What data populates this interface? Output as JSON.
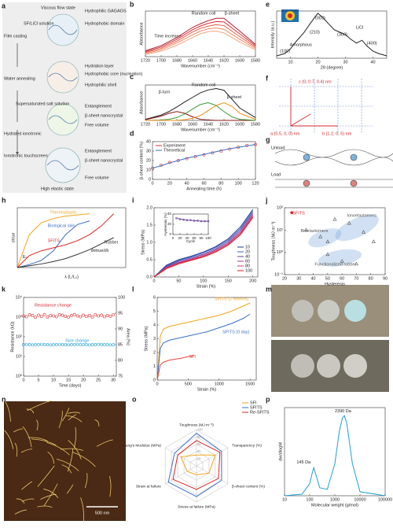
{
  "chart_data": [
    {
      "type": "line",
      "xlabel": "Wavenumber (cm⁻¹)",
      "ylabel": "Absorbance",
      "annotations": [
        "Time increase",
        "Random coil",
        "β-sheet"
      ],
      "x": [
        1720,
        1700,
        1680,
        1660,
        1650,
        1640,
        1630,
        1620,
        1600,
        1580
      ],
      "xlim": [
        1720,
        1580
      ],
      "xticks": [
        1720,
        1700,
        1680,
        1660,
        1640,
        1620,
        1600,
        1580
      ],
      "ylim": [
        0,
        1
      ],
      "series": [
        {
          "color": "#f4a582",
          "values": [
            0.05,
            0.12,
            0.25,
            0.42,
            0.5,
            0.55,
            0.56,
            0.52,
            0.32,
            0.15
          ]
        },
        {
          "color": "#ef8a62",
          "values": [
            0.07,
            0.15,
            0.3,
            0.48,
            0.56,
            0.61,
            0.63,
            0.6,
            0.38,
            0.18
          ]
        },
        {
          "color": "#e35d46",
          "values": [
            0.09,
            0.18,
            0.34,
            0.54,
            0.62,
            0.67,
            0.7,
            0.68,
            0.44,
            0.21
          ]
        },
        {
          "color": "#d6303a",
          "values": [
            0.11,
            0.21,
            0.38,
            0.59,
            0.67,
            0.73,
            0.77,
            0.76,
            0.5,
            0.24
          ]
        },
        {
          "color": "#b2182b",
          "values": [
            0.13,
            0.24,
            0.42,
            0.64,
            0.72,
            0.79,
            0.84,
            0.84,
            0.56,
            0.27
          ]
        }
      ]
    },
    {
      "type": "line",
      "xlabel": "Wavenumber (cm⁻¹)",
      "ylabel": "Absorbance",
      "annotations": [
        "β-turn",
        "Random coil",
        "β-sheet"
      ],
      "x": [
        1720,
        1700,
        1690,
        1680,
        1670,
        1660,
        1650,
        1640,
        1630,
        1620,
        1610,
        1600,
        1580
      ],
      "xlim": [
        1720,
        1580
      ],
      "xticks": [
        1720,
        1700,
        1680,
        1660,
        1640,
        1620,
        1600,
        1580
      ],
      "ylim": [
        0,
        1
      ],
      "series": [
        {
          "color": "#222222",
          "values": [
            0.03,
            0.15,
            0.25,
            0.38,
            0.52,
            0.65,
            0.78,
            0.86,
            0.9,
            0.85,
            0.6,
            0.35,
            0.08
          ]
        },
        {
          "color": "#8b1a1a",
          "values": [
            0.02,
            0.12,
            0.2,
            0.25,
            0.2,
            0.1,
            0.03,
            0.01,
            0,
            0,
            0,
            0,
            0
          ]
        },
        {
          "color": "#3a9a3a",
          "values": [
            0,
            0.01,
            0.03,
            0.08,
            0.18,
            0.32,
            0.45,
            0.5,
            0.42,
            0.25,
            0.1,
            0.03,
            0
          ]
        },
        {
          "color": "#f08c1c",
          "values": [
            0,
            0,
            0,
            0,
            0.02,
            0.06,
            0.14,
            0.28,
            0.42,
            0.5,
            0.4,
            0.2,
            0.03
          ]
        }
      ]
    },
    {
      "type": "line",
      "xlabel": "Annealing time (h)",
      "ylabel": "β-sheet content (%)",
      "legend": "upper left",
      "x": [
        0,
        10,
        20,
        30,
        40,
        50,
        60,
        70,
        80,
        90,
        100,
        110,
        120
      ],
      "xlim": [
        0,
        120
      ],
      "xticks": [
        0,
        20,
        40,
        60,
        80,
        100,
        120
      ],
      "ylim": [
        0,
        40
      ],
      "yticks": [
        0,
        10,
        20,
        30,
        40
      ],
      "series": [
        {
          "name": "Experiment",
          "color": "#d62728",
          "marker": "circle",
          "values": [
            12,
            15,
            18,
            20,
            22,
            24,
            26,
            28,
            30,
            32,
            34,
            36,
            37
          ]
        },
        {
          "name": "Theoretical",
          "color": "#3b6fc4",
          "values": [
            12,
            14.5,
            17.5,
            20,
            22.5,
            24.5,
            26.5,
            28.5,
            30.5,
            32.5,
            34,
            35.5,
            37
          ]
        }
      ]
    },
    {
      "type": "line",
      "xlabel": "2θ (degree)",
      "ylabel": "Intensity (a.u.)",
      "annotations": [
        "(100)",
        "Amorphous",
        "(210)",
        "(002)",
        "(300)",
        "LiCl",
        "(400)"
      ],
      "x": [
        5,
        8,
        10,
        12,
        15,
        17,
        19,
        20,
        21,
        22,
        24,
        26,
        28,
        30,
        32,
        34,
        36,
        38,
        40,
        42,
        45
      ],
      "xlim": [
        5,
        45
      ],
      "xticks": [
        10,
        20,
        30,
        40
      ],
      "ylim": [
        0,
        1
      ],
      "series": [
        {
          "color": "#222222",
          "values": [
            0.05,
            0.1,
            0.2,
            0.35,
            0.55,
            0.72,
            0.88,
            0.95,
            0.9,
            0.85,
            0.72,
            0.6,
            0.55,
            0.5,
            0.4,
            0.32,
            0.38,
            0.25,
            0.15,
            0.1,
            0.05
          ]
        }
      ]
    },
    {
      "type": "line",
      "xlabel": "λ (L/L₀)",
      "ylabel": "σtrue",
      "annotations": [
        "E₀",
        "∂σtrue/∂λ"
      ],
      "legend": "inline",
      "x": [
        1,
        1.5,
        2,
        2.5,
        3,
        3.5,
        4,
        4.5,
        5
      ],
      "xlim": [
        1,
        5.5
      ],
      "ylim": [
        0,
        1
      ],
      "series": [
        {
          "name": "Thermoplastic",
          "color": "#f2a51a",
          "values": [
            0,
            0.55,
            0.75,
            0.82,
            0.86,
            0.88,
            0.9,
            null,
            null
          ]
        },
        {
          "name": "Biological skin",
          "color": "#3b6fc4",
          "values": [
            0,
            0.05,
            0.12,
            0.28,
            0.55,
            0.72,
            0.78,
            null,
            null
          ]
        },
        {
          "name": "SFITS",
          "color": "#d62728",
          "values": [
            0,
            0.2,
            0.28,
            0.33,
            0.38,
            0.45,
            0.55,
            0.7,
            0.9
          ]
        },
        {
          "name": "Rubber",
          "color": "#333333",
          "values": [
            0,
            0.03,
            0.06,
            0.1,
            0.15,
            0.22,
            0.3,
            0.4,
            0.5
          ]
        }
      ]
    },
    {
      "type": "line",
      "xlabel": "Strain (%)",
      "ylabel": "Stress (MPa)",
      "legend": "lower right",
      "x": [
        0,
        25,
        50,
        75,
        100,
        125,
        150,
        175,
        200
      ],
      "xlim": [
        0,
        210
      ],
      "xticks": [
        0,
        50,
        100,
        150,
        200
      ],
      "ylim": [
        0,
        2
      ],
      "yticks": [
        {
          "value": 0,
          "label": "0.0"
        },
        0.5,
        {
          "value": 1,
          "label": "1.0"
        },
        1.5,
        {
          "value": 2,
          "label": "2.0"
        }
      ],
      "series": [
        {
          "name": "10",
          "color": "#1f3a93",
          "values": [
            0,
            0.34,
            0.5,
            0.6,
            0.72,
            0.88,
            1.1,
            1.45,
            1.95
          ]
        },
        {
          "name": "20",
          "color": "#3a5fc4",
          "values": [
            0,
            0.32,
            0.48,
            0.58,
            0.7,
            0.85,
            1.06,
            1.4,
            1.9
          ]
        },
        {
          "name": "40",
          "color": "#6a3d9a",
          "values": [
            0,
            0.3,
            0.45,
            0.55,
            0.66,
            0.81,
            1.02,
            1.35,
            1.85
          ]
        },
        {
          "name": "60",
          "color": "#b03a8c",
          "values": [
            0,
            0.28,
            0.42,
            0.52,
            0.63,
            0.78,
            0.98,
            1.3,
            1.8
          ]
        },
        {
          "name": "80",
          "color": "#d6336c",
          "values": [
            0,
            0.26,
            0.4,
            0.5,
            0.6,
            0.75,
            0.95,
            1.26,
            1.76
          ]
        },
        {
          "name": "100",
          "color": "#e31a1c",
          "values": [
            0,
            0.24,
            0.38,
            0.48,
            0.58,
            0.72,
            0.92,
            1.22,
            1.72
          ]
        }
      ]
    },
    {
      "type": "line",
      "xlabel": "Cycle",
      "ylabel": "Hysteresis (%)",
      "x": [
        10,
        20,
        30,
        40,
        50,
        60,
        70,
        80,
        90,
        100
      ],
      "xlim": [
        0,
        100
      ],
      "xticks": [
        0,
        20,
        40,
        60,
        80,
        100
      ],
      "ylim": [
        0,
        40
      ],
      "yticks": [
        0,
        20,
        40
      ],
      "series": [
        {
          "color": "#7b4fa0",
          "marker": "circle",
          "line": true,
          "values": [
            32,
            30,
            29,
            28,
            28,
            27,
            27,
            26,
            26,
            26
          ]
        }
      ]
    },
    {
      "type": "scatter",
      "xlabel": "Hysteresis",
      "ylabel": "Toughness (MJ m⁻³)",
      "legend": "inline",
      "ylog": true,
      "xlim": [
        20,
        90
      ],
      "xticks": [
        20,
        30,
        40,
        50,
        60,
        70,
        80,
        90
      ],
      "ylim": [
        0.1,
        100
      ],
      "yticks": [
        {
          "value": 0.1,
          "label": "10⁻¹"
        },
        {
          "value": 1,
          "label": "10⁰"
        },
        {
          "value": 10,
          "label": "10¹"
        },
        {
          "value": 100,
          "label": "10²"
        }
      ],
      "series": [
        {
          "name": "SFITS",
          "color": "#d62728",
          "marker": "circle",
          "x": [
            25
          ],
          "values": [
            60
          ]
        },
        {
          "name": "Ionoelastomers",
          "color": "#555555",
          "marker": "triangle",
          "x": [
            55,
            65,
            75,
            82
          ],
          "values": [
            30,
            20,
            8,
            3
          ]
        },
        {
          "name": "Bioelastomers",
          "color": "#555555",
          "marker": "triangle",
          "x": [
            35,
            45,
            50
          ],
          "values": [
            10,
            5,
            3
          ]
        },
        {
          "name": "Functionalized rubber",
          "color": "#555555",
          "marker": "triangle",
          "x": [
            50,
            60,
            70
          ],
          "values": [
            0.8,
            0.4,
            0.3
          ]
        }
      ]
    },
    {
      "type": "line",
      "xlabel": "Time (days)",
      "ylabel": "Resistance (kΩ)",
      "y2label": "Area (%)",
      "legend": "inline",
      "ylog": true,
      "x": [
        0,
        1,
        2,
        3,
        4,
        5,
        6,
        7,
        8,
        9,
        10,
        11,
        12,
        13,
        14,
        15,
        16,
        17,
        18,
        19,
        20,
        21,
        22,
        23,
        24,
        25,
        26,
        27,
        28,
        29,
        30
      ],
      "xlim": [
        0,
        31
      ],
      "xticks": [
        0,
        5,
        10,
        15,
        20,
        25,
        30
      ],
      "ylim": [
        1,
        10000
      ],
      "yticks": [
        {
          "value": 1,
          "label": "10⁰"
        },
        {
          "value": 10,
          "label": "10¹"
        },
        {
          "value": 100,
          "label": "10²"
        },
        {
          "value": 1000,
          "label": "10³"
        },
        {
          "value": 10000,
          "label": "10⁴"
        }
      ],
      "y2lim": [
        75,
        100
      ],
      "y2ticks": [
        75,
        80,
        85,
        90,
        95,
        100
      ],
      "series": [
        {
          "name": "Resistance change",
          "color": "#d62728",
          "marker": "circle",
          "values": [
            1150,
            1050,
            1300,
            1200,
            980,
            1250,
            1100,
            1350,
            1000,
            1200,
            1150,
            1050,
            1300,
            1250,
            1100,
            1000,
            1200,
            1350,
            1150,
            1050,
            1250,
            1100,
            1200,
            1000,
            1300,
            1150,
            1250,
            1050,
            1200,
            1100,
            1300
          ]
        },
        {
          "name": "Size change",
          "color": "#1f9fd6",
          "marker": "circle",
          "axis": "y2",
          "values": [
            85,
            85.1,
            85,
            84.9,
            85,
            85,
            85.1,
            85,
            85,
            84.9,
            85,
            85,
            85.1,
            85,
            85,
            84.9,
            85,
            85,
            85.1,
            85,
            85,
            85,
            84.9,
            85,
            85,
            85.1,
            85,
            85,
            85,
            84.9,
            85
          ]
        }
      ]
    },
    {
      "type": "line",
      "xlabel": "Strain (%)",
      "ylabel": "Stress (MPa)",
      "legend": "inline",
      "x": [
        0,
        50,
        100,
        200,
        400,
        600,
        800,
        1000,
        1200,
        1400,
        1500
      ],
      "xlim": [
        0,
        1600
      ],
      "xticks": [
        0,
        500,
        1000,
        1500
      ],
      "ylim": [
        0,
        6
      ],
      "yticks": [
        0,
        1,
        2,
        3,
        4,
        5,
        6
      ],
      "series": [
        {
          "name": "SFITS (2 months)",
          "color": "#f2a51a",
          "values": [
            0,
            3.2,
            3.7,
            3.9,
            4.1,
            4.3,
            4.5,
            4.7,
            5.0,
            5.4,
            5.6
          ]
        },
        {
          "name": "SFITS (0 day)",
          "color": "#3b6fc4",
          "values": [
            0,
            2.3,
            2.7,
            2.9,
            3.1,
            3.3,
            3.5,
            3.8,
            4.1,
            4.5,
            4.8
          ]
        },
        {
          "name": "SFI",
          "color": "#e8463a",
          "values": [
            0,
            1.1,
            1.3,
            1.45,
            1.6,
            1.8,
            null,
            null,
            null,
            null,
            null
          ]
        }
      ]
    },
    {
      "type": "radar",
      "legend": "upper right",
      "axes": [
        "Toughness (MJ m⁻³)",
        "Transparency (%)",
        "β-sheet content (%)",
        "Stress at failure (MPa)",
        "Strain at failure",
        "Young's Modulus (MPa)"
      ],
      "rlim": [
        0,
        100
      ],
      "rticks": [
        20,
        40,
        60,
        80,
        100
      ],
      "series": [
        {
          "name": "SFI",
          "color": "#f2a51a",
          "values": [
            30,
            60,
            40,
            25,
            30,
            50
          ]
        },
        {
          "name": "SFITS",
          "color": "#3b6fc4",
          "values": [
            90,
            80,
            80,
            85,
            90,
            70
          ]
        },
        {
          "name": "Re-SFITS",
          "color": "#d62728",
          "values": [
            70,
            75,
            70,
            65,
            75,
            60
          ]
        }
      ]
    },
    {
      "type": "line",
      "xlabel": "Molecular weight (g/mol)",
      "ylabel": "dw/dlogM",
      "annotations": [
        "145 Da",
        "2390 Da"
      ],
      "xlog": true,
      "x": [
        10,
        50,
        100,
        130,
        145,
        170,
        250,
        500,
        1000,
        1500,
        2000,
        2390,
        3000,
        5000,
        10000,
        100000
      ],
      "xlim": [
        10,
        100000
      ],
      "xticks": [
        10,
        100,
        1000,
        10000,
        100000
      ],
      "ylim": [
        0,
        1.1
      ],
      "series": [
        {
          "color": "#1f9fd6",
          "values": [
            0,
            0.02,
            0.15,
            0.3,
            0.35,
            0.28,
            0.1,
            0.08,
            0.4,
            0.8,
            0.97,
            1.0,
            0.9,
            0.4,
            0.05,
            0
          ]
        }
      ]
    }
  ],
  "figure": {
    "panel_labels": [
      "a",
      "b",
      "c",
      "d",
      "e",
      "f",
      "g",
      "h",
      "i",
      "j",
      "k",
      "l",
      "m",
      "n",
      "o",
      "p"
    ],
    "a": [
      "Viscous flow state",
      "SF/LiCl solution",
      "Film casting",
      "Hydrophilic GAGAGS",
      "Hydrophobic domain",
      "Water annealing",
      "Hydration layer",
      "Hydrophobic core (nucleation)",
      "Hydrophilic shell",
      "Supersaturated salt solution",
      "Entanglement",
      "β-sheet nanocrystal",
      "Free volume",
      "Hydrated ionotronic",
      "Ionotronic touchscreen",
      "Entanglement",
      "β-sheet nanocrystal",
      "Free volume",
      "High elastic state"
    ],
    "f": [
      "c (0, 0.7, 0.4) nm",
      "a (0.5, 0, 0) nm",
      "b (1.2, 0, 5) nm"
    ],
    "g": [
      "Unload",
      "Load"
    ],
    "n": [
      "500 nm"
    ]
  }
}
